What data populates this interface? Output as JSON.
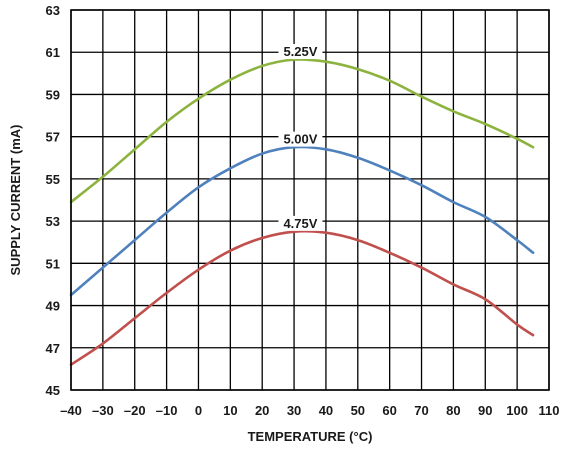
{
  "chart_data": {
    "type": "line",
    "xlabel": "TEMPERATURE (°C)",
    "ylabel": "SUPPLY CURRENT (mA)",
    "xlim": [
      -40,
      110
    ],
    "ylim": [
      45,
      63
    ],
    "x_ticks": [
      -40,
      -30,
      -20,
      -10,
      0,
      10,
      20,
      30,
      40,
      50,
      60,
      70,
      80,
      90,
      100,
      110
    ],
    "x_tick_labels": [
      "–40",
      "–30",
      "–20",
      "–10",
      "0",
      "10",
      "20",
      "30",
      "40",
      "50",
      "60",
      "70",
      "80",
      "90",
      "100",
      "110"
    ],
    "y_ticks": [
      45,
      47,
      49,
      51,
      53,
      55,
      57,
      59,
      61,
      63
    ],
    "y_tick_labels": [
      "45",
      "47",
      "49",
      "51",
      "53",
      "55",
      "57",
      "59",
      "61",
      "63"
    ],
    "grid": true,
    "series": [
      {
        "name": "5.25V",
        "color": "#8db33f",
        "label_at": 32,
        "x": [
          -40,
          -30,
          -20,
          -10,
          0,
          10,
          20,
          30,
          40,
          50,
          60,
          70,
          80,
          90,
          100,
          105
        ],
        "values": [
          53.9,
          55.1,
          56.4,
          57.7,
          58.8,
          59.7,
          60.35,
          60.65,
          60.55,
          60.2,
          59.65,
          58.9,
          58.2,
          57.6,
          56.9,
          56.5
        ]
      },
      {
        "name": "5.00V",
        "color": "#4f81bd",
        "label_at": 32,
        "x": [
          -40,
          -30,
          -20,
          -10,
          0,
          10,
          20,
          30,
          40,
          50,
          60,
          70,
          80,
          90,
          100,
          105
        ],
        "values": [
          49.5,
          50.8,
          52.1,
          53.4,
          54.6,
          55.5,
          56.2,
          56.5,
          56.4,
          56.0,
          55.4,
          54.7,
          53.9,
          53.2,
          52.1,
          51.5
        ]
      },
      {
        "name": "4.75V",
        "color": "#c0504d",
        "label_at": 32,
        "x": [
          -40,
          -30,
          -20,
          -10,
          0,
          10,
          20,
          30,
          40,
          50,
          60,
          70,
          80,
          90,
          100,
          105
        ],
        "values": [
          46.2,
          47.2,
          48.4,
          49.6,
          50.7,
          51.6,
          52.2,
          52.5,
          52.45,
          52.1,
          51.5,
          50.8,
          50.0,
          49.3,
          48.1,
          47.6
        ]
      }
    ]
  }
}
